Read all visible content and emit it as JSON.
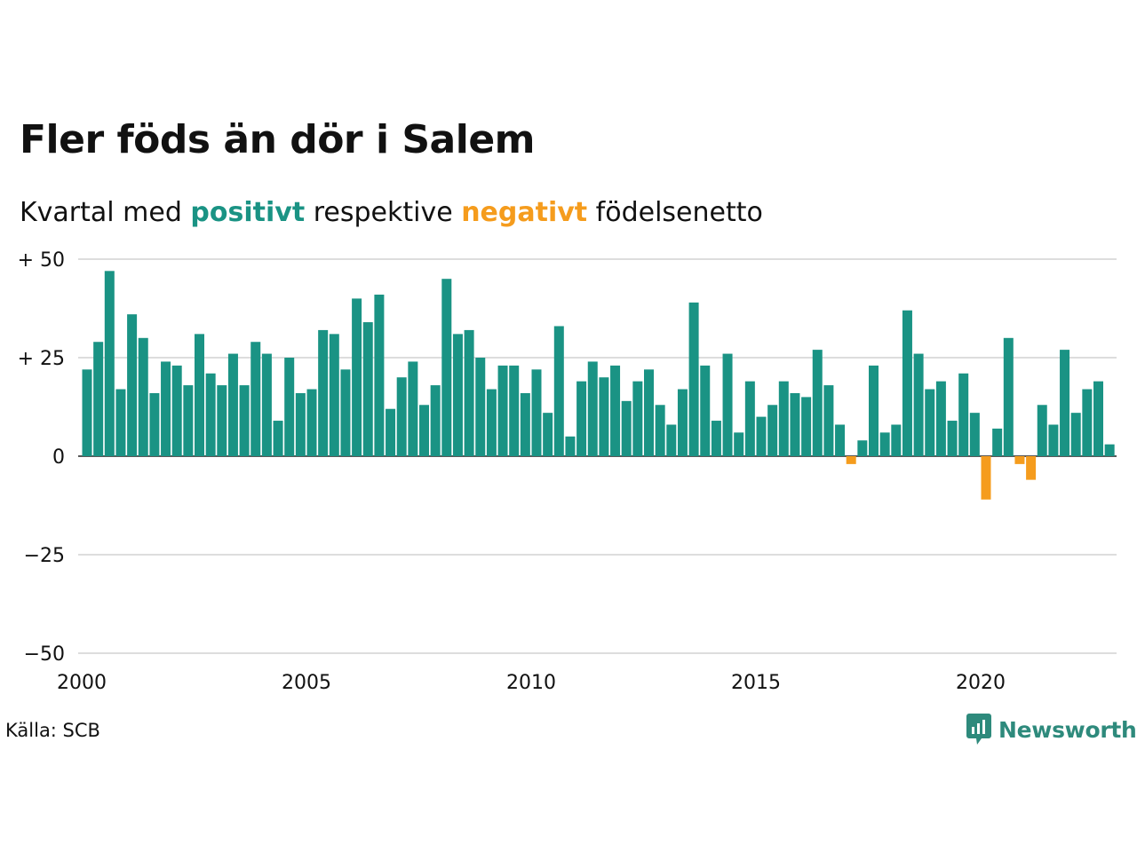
{
  "title": "Fler föds än dör i Salem",
  "subtitle": {
    "prefix": "Kvartal med ",
    "positive": "positivt",
    "middle": " respektive ",
    "negative": "negativt",
    "suffix": " födelsenetto"
  },
  "source": "Källa: SCB",
  "logo": {
    "text": "Newsworthy",
    "icon": "newsworthy-chart-bubble-icon"
  },
  "colors": {
    "positive": "#1a9384",
    "negative": "#f59c1d",
    "grid": "#dddddd",
    "axis": "#222222"
  },
  "chart_data": {
    "type": "bar",
    "title": "Fler föds än dör i Salem",
    "x_start_year": 2000,
    "periods_per_year": 4,
    "x_tick_labels": [
      "2000",
      "2005",
      "2010",
      "2015",
      "2020"
    ],
    "y_ticks": [
      {
        "value": 50,
        "label": "+ 50"
      },
      {
        "value": 25,
        "label": "+ 25"
      },
      {
        "value": 0,
        "label": "0"
      },
      {
        "value": -25,
        "label": "−25"
      },
      {
        "value": -50,
        "label": "−50"
      }
    ],
    "ylim": [
      -50,
      50
    ],
    "grid": true,
    "values": [
      22,
      29,
      47,
      17,
      36,
      30,
      16,
      24,
      23,
      18,
      31,
      21,
      18,
      26,
      18,
      29,
      26,
      9,
      25,
      16,
      17,
      32,
      31,
      22,
      40,
      34,
      41,
      12,
      20,
      24,
      13,
      18,
      45,
      31,
      32,
      25,
      17,
      23,
      23,
      16,
      22,
      11,
      33,
      5,
      19,
      24,
      20,
      23,
      14,
      19,
      22,
      13,
      8,
      17,
      39,
      23,
      9,
      26,
      6,
      19,
      10,
      13,
      19,
      16,
      15,
      27,
      18,
      8,
      -2,
      4,
      23,
      6,
      8,
      37,
      26,
      17,
      19,
      9,
      21,
      11,
      -11,
      7,
      30,
      -2,
      -6,
      13,
      8,
      27,
      11,
      17,
      19,
      3
    ]
  }
}
